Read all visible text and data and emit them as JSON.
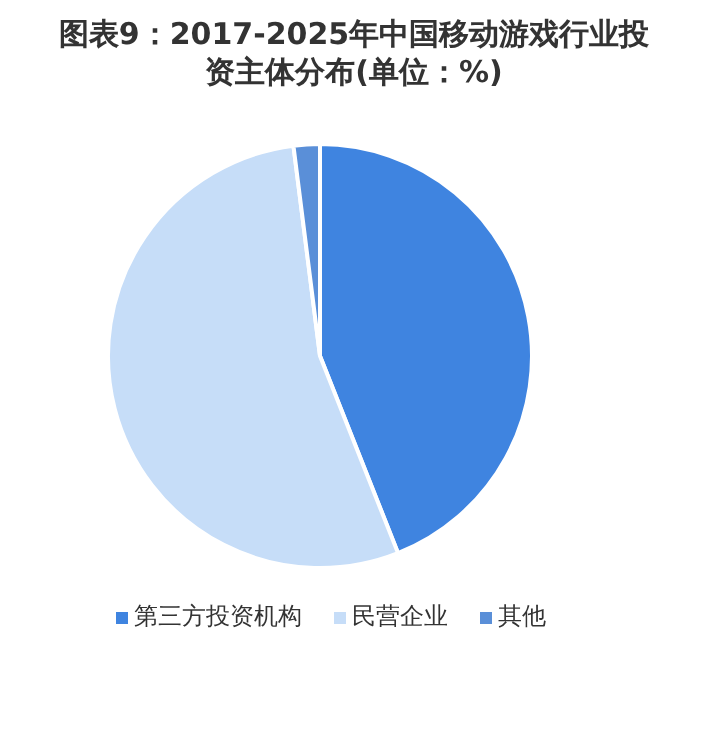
{
  "chart_data": {
    "type": "pie",
    "title": "图表9：2017-2025年中国移动游戏行业投资主体分布(单位：%)",
    "categories": [
      "第三方投资机构",
      "民营企业",
      "其他"
    ],
    "values": [
      44,
      54,
      2
    ],
    "colors": [
      "#3f84e0",
      "#c6ddf8",
      "#5a8fd8"
    ],
    "legend": "bottom"
  }
}
